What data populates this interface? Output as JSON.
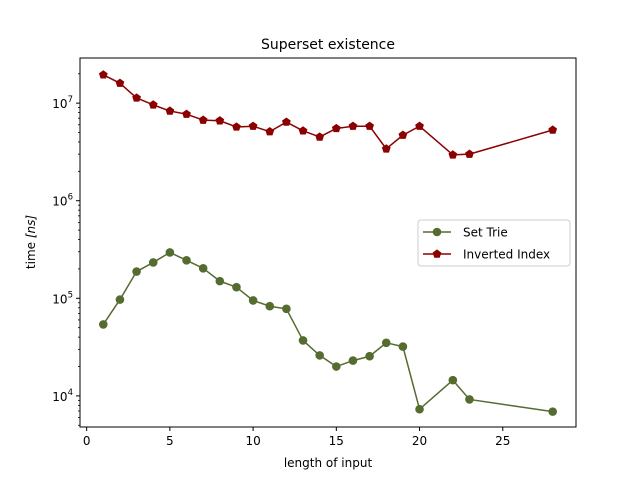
{
  "chart_data": {
    "type": "line",
    "title": "Superset existence",
    "xlabel": "length of input",
    "ylabel_prefix": "time ",
    "ylabel_unit": "[ns]",
    "yscale": "log",
    "xlim": [
      -0.4,
      29.4
    ],
    "ylim": [
      4800,
      29000000
    ],
    "x_ticks": [
      0,
      5,
      10,
      15,
      20,
      25
    ],
    "y_ticks": [
      {
        "base": "10",
        "exp": "4",
        "value": 10000
      },
      {
        "base": "10",
        "exp": "5",
        "value": 100000
      },
      {
        "base": "10",
        "exp": "6",
        "value": 1000000
      },
      {
        "base": "10",
        "exp": "7",
        "value": 10000000
      }
    ],
    "grid": false,
    "legend_position": "center-right",
    "series": [
      {
        "name": "Set Trie",
        "color": "#556b2f",
        "marker": "circle",
        "x": [
          1,
          2,
          3,
          4,
          5,
          6,
          7,
          8,
          9,
          10,
          11,
          12,
          13,
          14,
          15,
          16,
          17,
          18,
          19,
          20,
          22,
          23,
          28
        ],
        "y": [
          54000,
          97000,
          188000,
          233000,
          295000,
          245000,
          203000,
          150000,
          130000,
          95000,
          83000,
          78000,
          37000,
          26000,
          20000,
          23000,
          25500,
          35000,
          32000,
          7300,
          14500,
          9200,
          6900
        ]
      },
      {
        "name": "Inverted Index",
        "color": "#8b0000",
        "marker": "pentagon",
        "x": [
          1,
          2,
          3,
          4,
          5,
          6,
          7,
          8,
          9,
          10,
          11,
          12,
          13,
          14,
          15,
          16,
          17,
          18,
          19,
          20,
          22,
          23,
          28
        ],
        "y": [
          19500000,
          16000000,
          11300000,
          9600000,
          8300000,
          7700000,
          6700000,
          6600000,
          5700000,
          5800000,
          5100000,
          6400000,
          5200000,
          4500000,
          5500000,
          5800000,
          5800000,
          3400000,
          4700000,
          5800000,
          2950000,
          3000000,
          5300000
        ]
      }
    ]
  }
}
